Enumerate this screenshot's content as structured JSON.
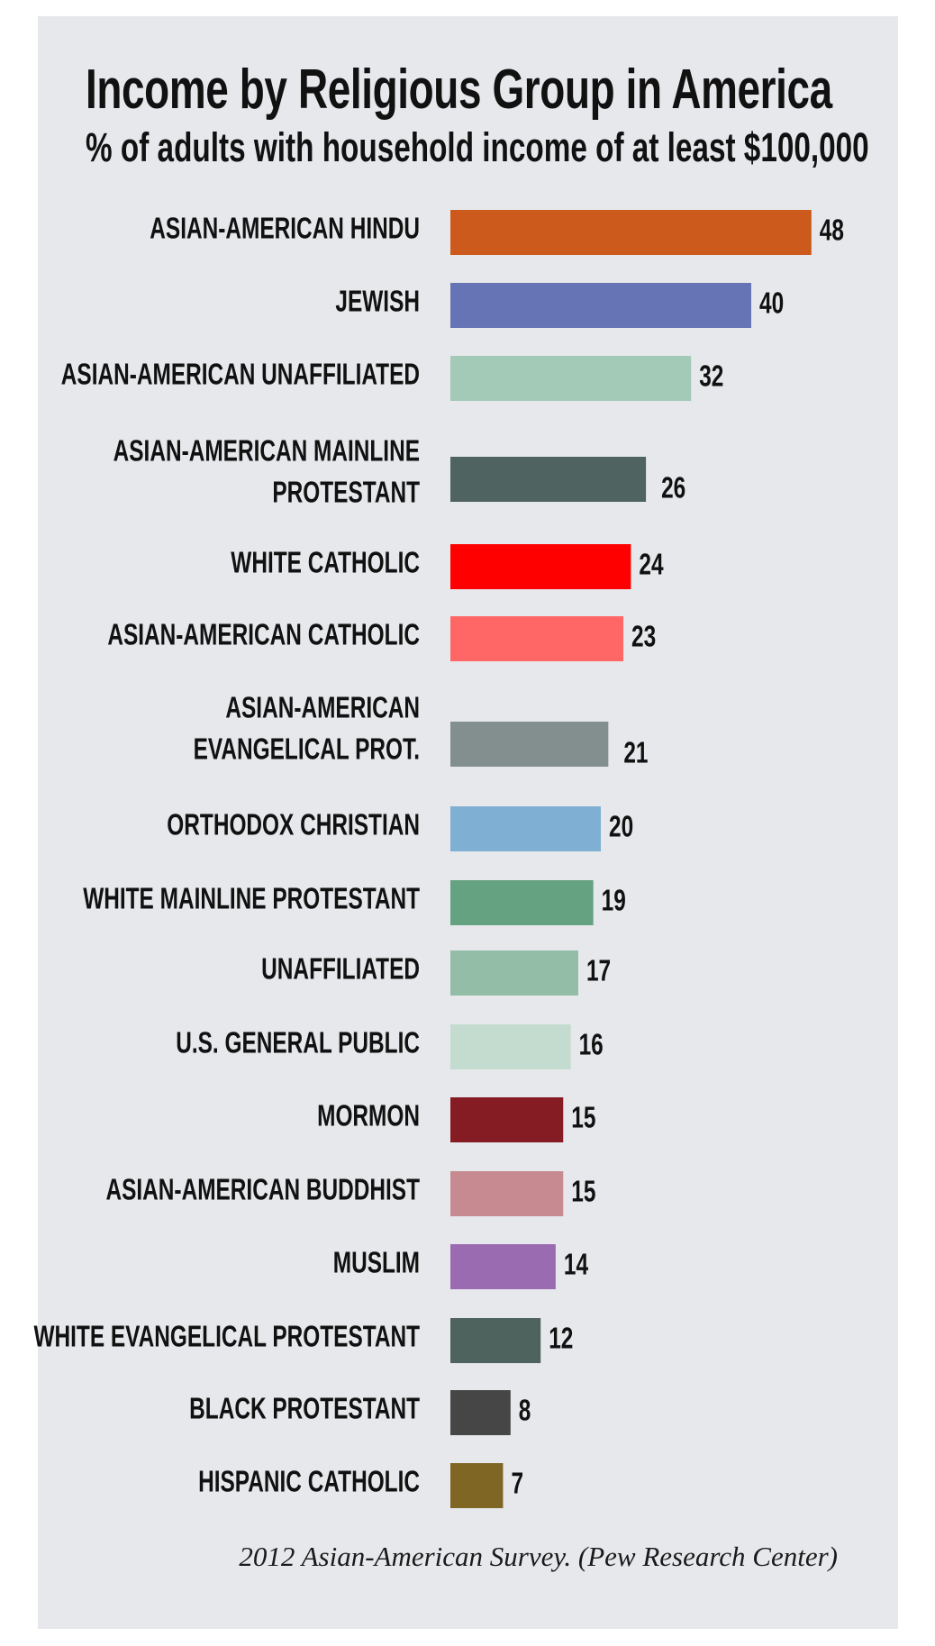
{
  "chart_data": {
    "type": "bar",
    "orientation": "horizontal",
    "title": "Income by Religious Group in America",
    "subtitle": "% of adults with household income of at least $100,000",
    "source": "2012 Asian-American Survey. (Pew Research Center)",
    "xlim": [
      0,
      50
    ],
    "grid": false,
    "legend": "none",
    "categories": [
      [
        "ASIAN-AMERICAN HINDU"
      ],
      [
        "JEWISH"
      ],
      [
        "ASIAN-AMERICAN UNAFFILIATED"
      ],
      [
        "ASIAN-AMERICAN MAINLINE",
        "PROTESTANT"
      ],
      [
        "WHITE CATHOLIC"
      ],
      [
        "ASIAN-AMERICAN CATHOLIC"
      ],
      [
        "ASIAN-AMERICAN",
        "EVANGELICAL PROT."
      ],
      [
        "ORTHODOX CHRISTIAN"
      ],
      [
        "WHITE MAINLINE PROTESTANT"
      ],
      [
        "UNAFFILIATED"
      ],
      [
        "U.S. GENERAL PUBLIC"
      ],
      [
        "MORMON"
      ],
      [
        "ASIAN-AMERICAN BUDDHIST"
      ],
      [
        "MUSLIM"
      ],
      [
        "WHITE EVANGELICAL PROTESTANT"
      ],
      [
        "BLACK PROTESTANT"
      ],
      [
        "HISPANIC CATHOLIC"
      ]
    ],
    "values": [
      48,
      40,
      32,
      26,
      24,
      23,
      21,
      20,
      19,
      17,
      16,
      15,
      15,
      14,
      12,
      8,
      7
    ],
    "colors": [
      "#cc5a1c",
      "#6674b6",
      "#a3c9b7",
      "#4f6361",
      "#ff0000",
      "#ff6767",
      "#838f8e",
      "#7fafd2",
      "#64a282",
      "#93bda7",
      "#c3dccf",
      "#861c23",
      "#c68a90",
      "#9b6bb1",
      "#4e635e",
      "#464646",
      "#7f6624"
    ]
  }
}
